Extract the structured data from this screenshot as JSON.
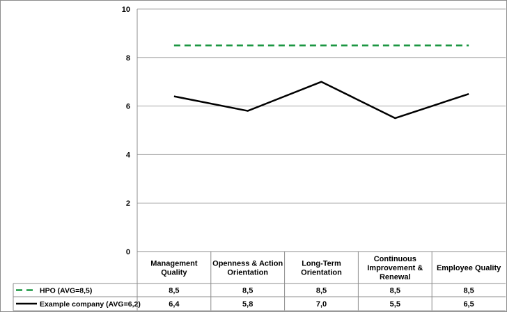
{
  "chart_data": {
    "type": "line",
    "categories": [
      [
        "Management",
        "Quality"
      ],
      [
        "Openness & Action",
        "Orientation"
      ],
      [
        "Long-Term",
        "Orientation"
      ],
      [
        "Continuous",
        "Improvement &",
        "Renewal"
      ],
      [
        "Employee Quality"
      ]
    ],
    "ylim": [
      0,
      10
    ],
    "yticks": [
      "0",
      "2",
      "4",
      "6",
      "8",
      "10"
    ],
    "grid": true,
    "legend_placement": "data-table-left",
    "series": [
      {
        "name": "HPO (AVG=8,5)",
        "values": [
          8.5,
          8.5,
          8.5,
          8.5,
          8.5
        ],
        "labels": [
          "8,5",
          "8,5",
          "8,5",
          "8,5",
          "8,5"
        ],
        "color": "#1a9641",
        "dash": "dashed"
      },
      {
        "name": "Example company (AVG=6,2)",
        "values": [
          6.4,
          5.8,
          7.0,
          5.5,
          6.5
        ],
        "labels": [
          "6,4",
          "5,8",
          "7,0",
          "5,5",
          "6,5"
        ],
        "color": "#000000",
        "dash": "solid"
      }
    ]
  }
}
